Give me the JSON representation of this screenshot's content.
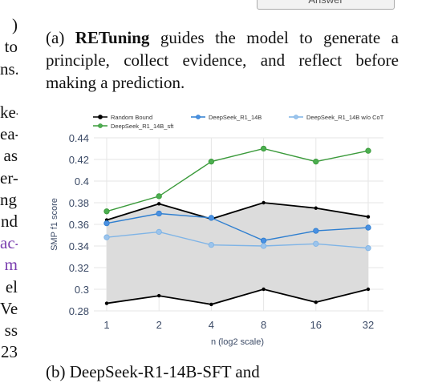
{
  "left_column_fragments": [
    "",
    ")",
    "to",
    "ns.",
    "",
    "ke-",
    "ea-",
    "as",
    "er-",
    "ng.",
    "nd",
    "ac-",
    "m",
    "el",
    "Ve",
    "ss",
    "23"
  ],
  "left_column_colors": [
    "#111",
    "#111",
    "#111",
    "#111",
    "#111",
    "#111",
    "#111",
    "#111",
    "#111",
    "#111",
    "#111",
    "#7b3fb0",
    "#7b3fb0",
    "#111",
    "#111",
    "#111",
    "#111"
  ],
  "answer_button": "Answer",
  "caption_a": {
    "prefix": "(a) ",
    "bold": "RETuning",
    "rest": " guides the model to generate a principle, collect evidence, and reflect before making a prediction."
  },
  "caption_b": "(b) DeepSeek-R1-14B-SFT and",
  "chart_data": {
    "type": "line",
    "xlabel": "n (log2 scale)",
    "ylabel": "SMP f1 score",
    "categories": [
      "1",
      "2",
      "4",
      "8",
      "16",
      "32"
    ],
    "ylim": [
      0.28,
      0.44
    ],
    "yticks": [
      0.28,
      0.3,
      0.32,
      0.34,
      0.36,
      0.38,
      0.4,
      0.42,
      0.44
    ],
    "ytick_labels": [
      "0.28",
      "0.3",
      "0.32",
      "0.34",
      "0.36",
      "0.38",
      "0.4",
      "0.42",
      "0.44"
    ],
    "grid": true,
    "legend_placement": "top",
    "random_bound": {
      "name": "Random Bound",
      "color": "#000000",
      "upper": [
        0.364,
        0.379,
        0.365,
        0.38,
        0.375,
        0.367
      ],
      "lower": [
        0.287,
        0.294,
        0.286,
        0.3,
        0.288,
        0.3
      ],
      "fill": "#dcdcdc"
    },
    "series": [
      {
        "name": "DeepSeek_R1_14B",
        "color": "#2f7fd0",
        "marker_fill": "#4a90e2",
        "values": [
          0.361,
          0.37,
          0.366,
          0.345,
          0.354,
          0.357
        ]
      },
      {
        "name": "DeepSeek_R1_14B w/o CoT",
        "color": "#7fb4e6",
        "marker_fill": "#9cc4ec",
        "values": [
          0.348,
          0.353,
          0.341,
          0.34,
          0.342,
          0.338
        ]
      },
      {
        "name": "DeepSeek_R1_14B_sft",
        "color": "#3a9a3a",
        "marker_fill": "#4caf50",
        "values": [
          0.372,
          0.386,
          0.418,
          0.43,
          0.418,
          0.428
        ]
      }
    ]
  }
}
